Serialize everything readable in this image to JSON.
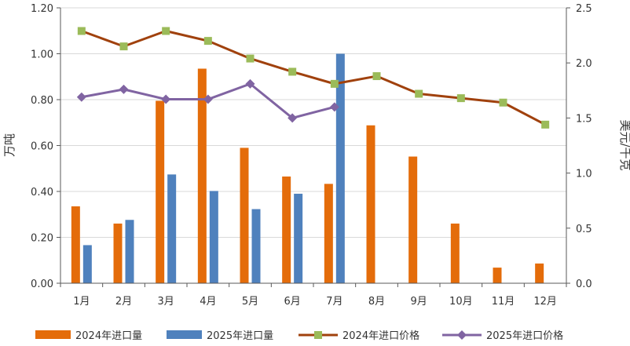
{
  "chart_data": {
    "type": "bar",
    "categories": [
      "1月",
      "2月",
      "3月",
      "4月",
      "5月",
      "6月",
      "7月",
      "8月",
      "9月",
      "10月",
      "11月",
      "12月"
    ],
    "y_left": {
      "label": "万吨",
      "ylim": [
        0,
        1.2
      ],
      "ticks": [
        "0.00",
        "0.20",
        "0.40",
        "0.60",
        "0.80",
        "1.00",
        "1.20"
      ]
    },
    "y_right": {
      "label": "美元/千克",
      "ylim": [
        0,
        2.5
      ],
      "ticks": [
        "0.0",
        "0.5",
        "1.0",
        "1.5",
        "2.0",
        "2.5"
      ]
    },
    "series": [
      {
        "name": "2024年进口量",
        "kind": "bar",
        "axis": "left",
        "color": "#E46C0A",
        "values": [
          0.335,
          0.26,
          0.795,
          0.935,
          0.59,
          0.465,
          0.433,
          0.688,
          0.552,
          0.26,
          0.068,
          0.086
        ]
      },
      {
        "name": "2025年进口量",
        "kind": "bar",
        "axis": "left",
        "color": "#4F81BD",
        "values": [
          0.166,
          0.276,
          0.474,
          0.402,
          0.323,
          0.39,
          1.0,
          null,
          null,
          null,
          null,
          null
        ]
      },
      {
        "name": "2024年进口价格",
        "kind": "line",
        "axis": "right",
        "color": "#A0410D",
        "marker": "square",
        "marker_color": "#9BBB59",
        "values": [
          2.29,
          2.15,
          2.29,
          2.2,
          2.04,
          1.92,
          1.81,
          1.88,
          1.72,
          1.68,
          1.64,
          1.44
        ]
      },
      {
        "name": "2025年进口价格",
        "kind": "line",
        "axis": "right",
        "color": "#8064A2",
        "marker": "diamond",
        "values": [
          1.69,
          1.76,
          1.67,
          1.67,
          1.81,
          1.5,
          1.6,
          null,
          null,
          null,
          null,
          null
        ]
      }
    ],
    "grid": "horizontal",
    "legend_position": "bottom"
  }
}
